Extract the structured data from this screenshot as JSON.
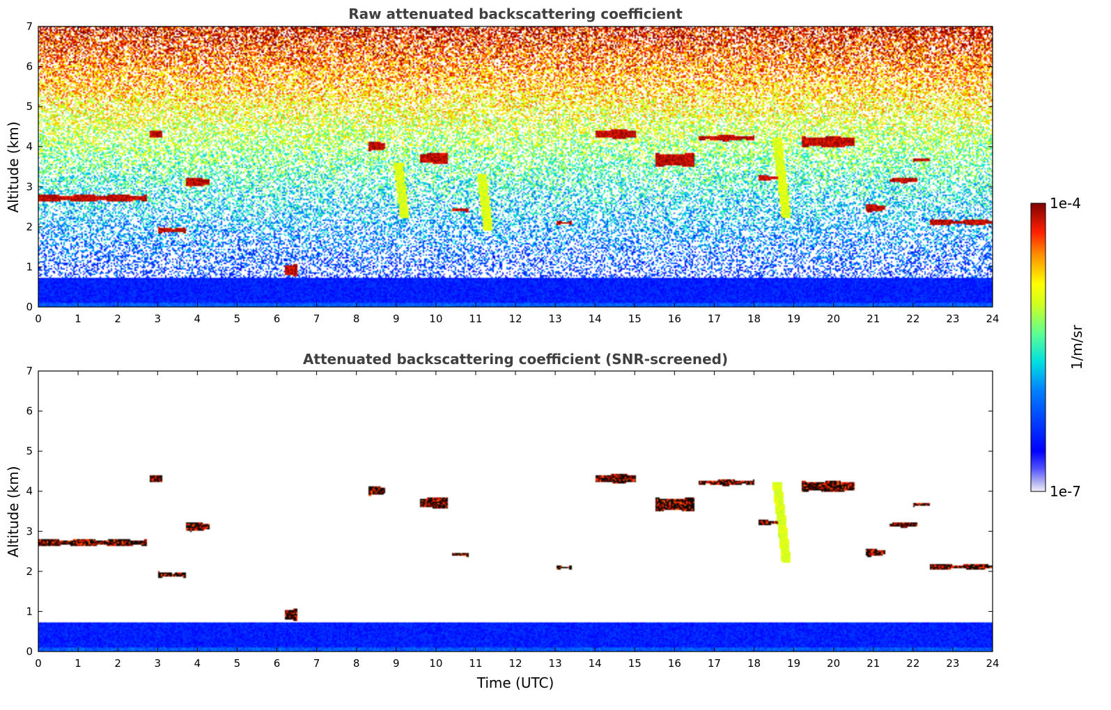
{
  "chart_data": [
    {
      "type": "heatmap",
      "title": "Raw attenuated backscattering coefficient",
      "xlabel": "",
      "ylabel": "Altitude (km)",
      "xlim": [
        0,
        24
      ],
      "ylim": [
        0,
        7
      ],
      "x_ticks": [
        "0",
        "1",
        "2",
        "3",
        "4",
        "5",
        "6",
        "7",
        "8",
        "9",
        "10",
        "11",
        "12",
        "13",
        "14",
        "15",
        "16",
        "17",
        "18",
        "19",
        "20",
        "21",
        "22",
        "23",
        "24"
      ],
      "y_ticks": [
        "0",
        "1",
        "2",
        "3",
        "4",
        "5",
        "6",
        "7"
      ],
      "grid": false,
      "noise": {
        "surface_top_km": 0.7,
        "background": "noisy"
      },
      "cloud_layers": [
        {
          "t0": 0.0,
          "t1": 2.7,
          "h": 2.7,
          "th": 0.16
        },
        {
          "t0": 2.8,
          "t1": 3.1,
          "h": 4.3,
          "th": 0.15
        },
        {
          "t0": 3.0,
          "t1": 3.7,
          "h": 1.9,
          "th": 0.12
        },
        {
          "t0": 3.7,
          "t1": 4.3,
          "h": 3.1,
          "th": 0.2
        },
        {
          "t0": 6.2,
          "t1": 6.5,
          "h": 0.9,
          "th": 0.25
        },
        {
          "t0": 8.3,
          "t1": 8.7,
          "h": 4.0,
          "th": 0.2
        },
        {
          "t0": 9.6,
          "t1": 10.3,
          "h": 3.7,
          "th": 0.25
        },
        {
          "t0": 10.4,
          "t1": 10.8,
          "h": 2.4,
          "th": 0.1
        },
        {
          "t0": 13.0,
          "t1": 13.4,
          "h": 2.08,
          "th": 0.1
        },
        {
          "t0": 14.0,
          "t1": 15.0,
          "h": 4.3,
          "th": 0.2
        },
        {
          "t0": 15.5,
          "t1": 16.5,
          "h": 3.65,
          "th": 0.3
        },
        {
          "t0": 16.6,
          "t1": 18.0,
          "h": 4.2,
          "th": 0.12
        },
        {
          "t0": 18.1,
          "t1": 18.6,
          "h": 3.2,
          "th": 0.1
        },
        {
          "t0": 19.2,
          "t1": 20.5,
          "h": 4.1,
          "th": 0.25
        },
        {
          "t0": 20.8,
          "t1": 21.3,
          "h": 2.45,
          "th": 0.15
        },
        {
          "t0": 21.4,
          "t1": 22.1,
          "h": 3.15,
          "th": 0.1
        },
        {
          "t0": 22.0,
          "t1": 22.4,
          "h": 3.65,
          "th": 0.1
        },
        {
          "t0": 22.4,
          "t1": 24.0,
          "h": 2.1,
          "th": 0.12
        }
      ],
      "aerosol_streaks": [
        {
          "t": 9.2,
          "h0": 2.2,
          "h1": 3.6
        },
        {
          "t": 11.3,
          "h0": 1.9,
          "h1": 3.3
        },
        {
          "t": 18.8,
          "h0": 2.2,
          "h1": 4.2
        }
      ]
    },
    {
      "type": "heatmap",
      "title": "Attenuated backscattering coefficient (SNR-screened)",
      "xlabel": "Time (UTC)",
      "ylabel": "Altitude (km)",
      "xlim": [
        0,
        24
      ],
      "ylim": [
        0,
        7
      ],
      "x_ticks": [
        "0",
        "1",
        "2",
        "3",
        "4",
        "5",
        "6",
        "7",
        "8",
        "9",
        "10",
        "11",
        "12",
        "13",
        "14",
        "15",
        "16",
        "17",
        "18",
        "19",
        "20",
        "21",
        "22",
        "23",
        "24"
      ],
      "y_ticks": [
        "0",
        "1",
        "2",
        "3",
        "4",
        "5",
        "6",
        "7"
      ],
      "grid": false,
      "noise": {
        "surface_top_km": 0.7,
        "background": "screened"
      }
    }
  ],
  "colorbar": {
    "label": "1/m/sr",
    "max_label": "1e-4",
    "min_label": "1e-7",
    "colormap": "jet"
  }
}
